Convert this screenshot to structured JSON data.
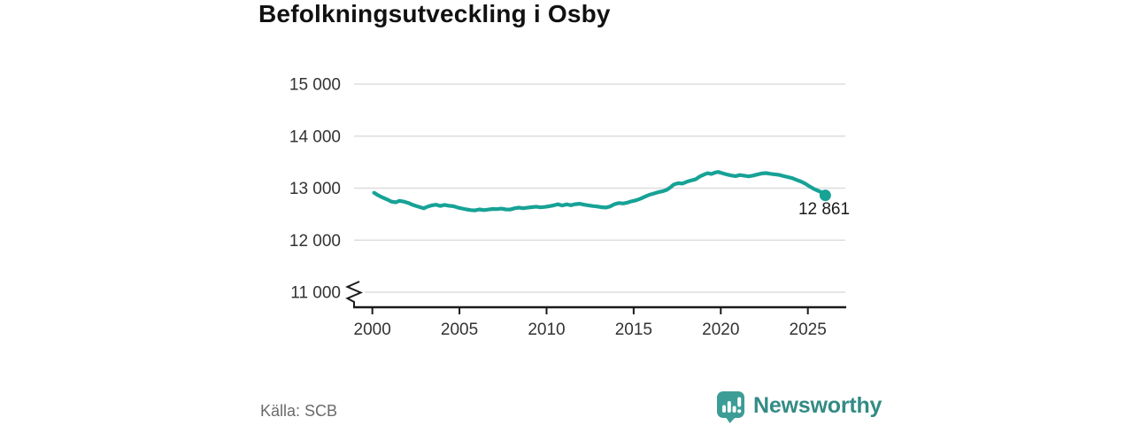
{
  "title": "Befolkningsutveckling i Osby",
  "source": "Källa: SCB",
  "logo": {
    "wordmark": "Newsworthy",
    "icon": "newsworthy-chart-bubble-icon"
  },
  "colors": {
    "line": "#17a296",
    "grid": "#dedede",
    "axis": "#1a1a1a",
    "tick_text": "#333333",
    "title_text": "#111111",
    "source_text": "#6b6b6b",
    "logo_icon": "#3c9d96",
    "logo_text": "#338b84"
  },
  "chart_data": {
    "type": "line",
    "title": "Befolkningsutveckling i Osby",
    "xlabel": "",
    "ylabel": "",
    "xlim": [
      1998.95,
      2027.15
    ],
    "ylim": [
      11000,
      15000
    ],
    "axis_break": true,
    "grid": "horizontal",
    "legend": "none",
    "end_label": "12 861",
    "end_value": 12861,
    "yticks": [
      {
        "value": 15000,
        "label": "15 000"
      },
      {
        "value": 14000,
        "label": "14 000"
      },
      {
        "value": 13000,
        "label": "13 000"
      },
      {
        "value": 12000,
        "label": "12 000"
      },
      {
        "value": 11000,
        "label": "11 000"
      }
    ],
    "xticks": [
      {
        "value": 2000,
        "label": "2000"
      },
      {
        "value": 2005,
        "label": "2005"
      },
      {
        "value": 2010,
        "label": "2010"
      },
      {
        "value": 2015,
        "label": "2015"
      },
      {
        "value": 2020,
        "label": "2020"
      },
      {
        "value": 2025,
        "label": "2025"
      }
    ],
    "points": [
      [
        2000.1,
        12912
      ],
      [
        2000.35,
        12858
      ],
      [
        2000.6,
        12818
      ],
      [
        2000.85,
        12782
      ],
      [
        2001.1,
        12742
      ],
      [
        2001.35,
        12728
      ],
      [
        2001.55,
        12756
      ],
      [
        2001.8,
        12742
      ],
      [
        2002.05,
        12718
      ],
      [
        2002.3,
        12682
      ],
      [
        2002.55,
        12652
      ],
      [
        2002.8,
        12628
      ],
      [
        2002.95,
        12612
      ],
      [
        2003.15,
        12642
      ],
      [
        2003.4,
        12668
      ],
      [
        2003.65,
        12682
      ],
      [
        2003.9,
        12658
      ],
      [
        2004.15,
        12678
      ],
      [
        2004.4,
        12662
      ],
      [
        2004.65,
        12652
      ],
      [
        2004.9,
        12628
      ],
      [
        2005.15,
        12608
      ],
      [
        2005.4,
        12592
      ],
      [
        2005.65,
        12578
      ],
      [
        2005.9,
        12572
      ],
      [
        2006.15,
        12592
      ],
      [
        2006.4,
        12578
      ],
      [
        2006.65,
        12588
      ],
      [
        2006.9,
        12600
      ],
      [
        2007.15,
        12596
      ],
      [
        2007.4,
        12606
      ],
      [
        2007.65,
        12592
      ],
      [
        2007.9,
        12588
      ],
      [
        2008.15,
        12612
      ],
      [
        2008.4,
        12626
      ],
      [
        2008.65,
        12614
      ],
      [
        2008.9,
        12624
      ],
      [
        2009.15,
        12634
      ],
      [
        2009.4,
        12644
      ],
      [
        2009.65,
        12630
      ],
      [
        2009.9,
        12640
      ],
      [
        2010.15,
        12652
      ],
      [
        2010.4,
        12668
      ],
      [
        2010.65,
        12690
      ],
      [
        2010.9,
        12666
      ],
      [
        2011.15,
        12688
      ],
      [
        2011.4,
        12672
      ],
      [
        2011.65,
        12692
      ],
      [
        2011.9,
        12700
      ],
      [
        2012.15,
        12682
      ],
      [
        2012.4,
        12670
      ],
      [
        2012.65,
        12656
      ],
      [
        2012.9,
        12648
      ],
      [
        2013.15,
        12634
      ],
      [
        2013.4,
        12628
      ],
      [
        2013.65,
        12648
      ],
      [
        2013.9,
        12692
      ],
      [
        2014.15,
        12714
      ],
      [
        2014.4,
        12706
      ],
      [
        2014.65,
        12722
      ],
      [
        2014.9,
        12748
      ],
      [
        2015.15,
        12766
      ],
      [
        2015.4,
        12800
      ],
      [
        2015.65,
        12836
      ],
      [
        2015.9,
        12872
      ],
      [
        2016.15,
        12896
      ],
      [
        2016.4,
        12922
      ],
      [
        2016.65,
        12938
      ],
      [
        2016.9,
        12968
      ],
      [
        2017.1,
        13012
      ],
      [
        2017.3,
        13068
      ],
      [
        2017.55,
        13096
      ],
      [
        2017.8,
        13088
      ],
      [
        2018.05,
        13122
      ],
      [
        2018.3,
        13148
      ],
      [
        2018.55,
        13168
      ],
      [
        2018.8,
        13224
      ],
      [
        2019.05,
        13262
      ],
      [
        2019.25,
        13288
      ],
      [
        2019.45,
        13272
      ],
      [
        2019.65,
        13296
      ],
      [
        2019.85,
        13312
      ],
      [
        2020.1,
        13288
      ],
      [
        2020.35,
        13262
      ],
      [
        2020.6,
        13244
      ],
      [
        2020.85,
        13232
      ],
      [
        2021.1,
        13252
      ],
      [
        2021.35,
        13240
      ],
      [
        2021.6,
        13226
      ],
      [
        2021.85,
        13242
      ],
      [
        2022.1,
        13262
      ],
      [
        2022.35,
        13282
      ],
      [
        2022.6,
        13290
      ],
      [
        2022.85,
        13276
      ],
      [
        2023.1,
        13266
      ],
      [
        2023.35,
        13256
      ],
      [
        2023.6,
        13234
      ],
      [
        2023.85,
        13212
      ],
      [
        2024.1,
        13192
      ],
      [
        2024.35,
        13158
      ],
      [
        2024.6,
        13128
      ],
      [
        2024.85,
        13086
      ],
      [
        2025.1,
        13032
      ],
      [
        2025.35,
        12984
      ],
      [
        2025.6,
        12948
      ],
      [
        2025.85,
        12912
      ],
      [
        2026.0,
        12861
      ]
    ]
  }
}
